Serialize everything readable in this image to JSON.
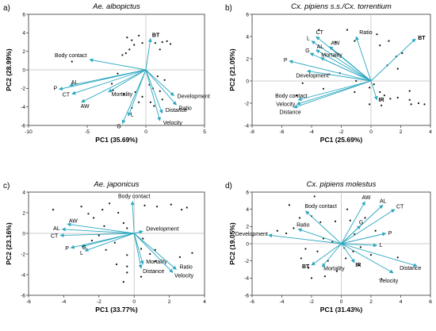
{
  "colors": {
    "arrow": "#2aa7c0",
    "point": "#111111",
    "frame": "#333333",
    "zero_line": "#bbbbbb"
  },
  "chart_data": [
    {
      "panel": "a)",
      "type": "scatter",
      "title": "Ae. albopictus",
      "xlabel": "PC1 (35.69%)",
      "ylabel": "PC2 (28.99%)",
      "xlim": [
        -10,
        5
      ],
      "ylim": [
        -6,
        6
      ],
      "xticks": [
        "-10",
        "-5",
        "0",
        "5"
      ],
      "yticks": [
        "-6",
        "-4",
        "-2",
        "0",
        "2",
        "4",
        "6"
      ],
      "xtick_values": [
        -10,
        -5,
        0,
        5
      ],
      "ytick_values": [
        -6,
        -4,
        -2,
        0,
        2,
        4,
        6
      ],
      "vectors": [
        {
          "label": "BT",
          "x": 0.4,
          "y": 3.4,
          "bold": true
        },
        {
          "label": "Body contact",
          "x": -4.8,
          "y": 1.1
        },
        {
          "label": "AL",
          "x": -6.5,
          "y": -1.7
        },
        {
          "label": "P",
          "x": -7.4,
          "y": -2.1
        },
        {
          "label": "CT",
          "x": -6.3,
          "y": -2.6
        },
        {
          "label": "AW",
          "x": -5.5,
          "y": -3.5
        },
        {
          "label": "Mortality",
          "x": -3.2,
          "y": -2.4
        },
        {
          "label": "L",
          "x": -1.5,
          "y": -5.0
        },
        {
          "label": "G",
          "x": -2.0,
          "y": -5.8
        },
        {
          "label": "Distance",
          "x": 1.4,
          "y": -4.7
        },
        {
          "label": "Velocity",
          "x": 1.2,
          "y": -5.5
        },
        {
          "label": "Ratio",
          "x": 2.6,
          "y": -3.8
        },
        {
          "label": "Development",
          "x": 2.4,
          "y": -2.8
        }
      ],
      "points": [
        [
          -1.6,
          3.5
        ],
        [
          -1.2,
          3.2
        ],
        [
          -1.0,
          2.7
        ],
        [
          -0.6,
          3.7
        ],
        [
          -1.4,
          2.2
        ],
        [
          -0.3,
          2.9
        ],
        [
          0.8,
          2.9
        ],
        [
          1.4,
          3.0
        ],
        [
          1.8,
          3.1
        ],
        [
          2.1,
          2.8
        ],
        [
          1.2,
          2.2
        ],
        [
          -2.0,
          1.6
        ],
        [
          -1.7,
          1.8
        ],
        [
          -6.3,
          0.9
        ],
        [
          -2.4,
          -0.4
        ],
        [
          -2.9,
          -1.5
        ],
        [
          -1.9,
          -2.6
        ],
        [
          -0.3,
          -2.9
        ],
        [
          0.3,
          -1.6
        ],
        [
          0.6,
          -2.0
        ],
        [
          1.0,
          -0.7
        ],
        [
          1.6,
          -1.1
        ],
        [
          1.2,
          -2.3
        ],
        [
          0.4,
          -3.5
        ],
        [
          -0.6,
          -3.5
        ],
        [
          -1.2,
          -4.1
        ],
        [
          -2.8,
          -2.2
        ],
        [
          0.7,
          -3.9
        ],
        [
          1.4,
          -3.2
        ],
        [
          -0.9,
          -2.4
        ]
      ]
    },
    {
      "panel": "b)",
      "type": "scatter",
      "title": "Cx. pipiens s.s./Cx. torrentium",
      "xlabel": "PC1 (25.69%)",
      "ylabel": "PC2 (21.05%)",
      "xlim": [
        -8,
        4
      ],
      "ylim": [
        -4,
        6
      ],
      "xticks": [
        "-8",
        "-6",
        "-4",
        "-2",
        "0",
        "2",
        "4"
      ],
      "yticks": [
        "-4",
        "-2",
        "0",
        "2",
        "4",
        "6"
      ],
      "xtick_values": [
        -8,
        -6,
        -4,
        -2,
        0,
        2,
        4
      ],
      "ytick_values": [
        -4,
        -2,
        0,
        2,
        4,
        6
      ],
      "vectors": [
        {
          "label": "CT",
          "x": -3.7,
          "y": 4.0
        },
        {
          "label": "Ratio",
          "x": -1.0,
          "y": 4.0
        },
        {
          "label": "L",
          "x": -4.0,
          "y": 3.6
        },
        {
          "label": "AW",
          "x": -2.8,
          "y": 3.1
        },
        {
          "label": "AL",
          "x": -3.7,
          "y": 2.8
        },
        {
          "label": "G",
          "x": -4.1,
          "y": 2.5
        },
        {
          "label": "Mortality",
          "x": -3.4,
          "y": 2.1
        },
        {
          "label": "P",
          "x": -5.5,
          "y": 1.8
        },
        {
          "label": "Development",
          "x": -4.3,
          "y": 0.9
        },
        {
          "label": "BT",
          "x": 3.0,
          "y": 3.8,
          "bold": true
        },
        {
          "label": "Body contact",
          "x": -4.9,
          "y": -1.7
        },
        {
          "label": "Velocity",
          "x": -5.0,
          "y": -2.1
        },
        {
          "label": "Distance",
          "x": -5.2,
          "y": -2.4
        },
        {
          "label": "IR",
          "x": 0.4,
          "y": -1.7,
          "bold": true
        }
      ],
      "points": [
        [
          -3.5,
          4.6
        ],
        [
          -1.6,
          4.6
        ],
        [
          0.4,
          4.2
        ],
        [
          -1.1,
          3.6
        ],
        [
          -2.4,
          3.5
        ],
        [
          0.6,
          3.2
        ],
        [
          1.2,
          3.6
        ],
        [
          2.1,
          2.5
        ],
        [
          1.7,
          2.2
        ],
        [
          1.1,
          1.4
        ],
        [
          1.8,
          1.1
        ],
        [
          -2.1,
          0.7
        ],
        [
          -2.8,
          0.6
        ],
        [
          -4.6,
          -0.2
        ],
        [
          -3.2,
          -0.7
        ],
        [
          -1.0,
          0.0
        ],
        [
          -1.1,
          -1.0
        ],
        [
          -0.1,
          -0.6
        ],
        [
          0.2,
          -0.3
        ],
        [
          0.6,
          -1.0
        ],
        [
          0.9,
          -1.3
        ],
        [
          1.3,
          -1.6
        ],
        [
          1.8,
          -1.5
        ],
        [
          2.6,
          -1.7
        ],
        [
          2.7,
          -2.1
        ],
        [
          3.2,
          -2.0
        ],
        [
          3.6,
          -2.1
        ],
        [
          -0.1,
          -2.1
        ],
        [
          0.7,
          -2.2
        ],
        [
          2.6,
          -0.9
        ],
        [
          -5.0,
          -1.3
        ]
      ]
    },
    {
      "panel": "c)",
      "type": "scatter",
      "title": "Ae. japonicus",
      "xlabel": "PC1 (33.77%)",
      "ylabel": "PC2 (23.16%)",
      "xlim": [
        -6,
        4
      ],
      "ylim": [
        -6,
        4
      ],
      "xticks": [
        "-6",
        "-4",
        "-2",
        "0",
        "2",
        "4"
      ],
      "yticks": [
        "-6",
        "-4",
        "-2",
        "0",
        "2",
        "4"
      ],
      "xtick_values": [
        -6,
        -4,
        -2,
        0,
        2,
        4
      ],
      "ytick_values": [
        -6,
        -4,
        -2,
        0,
        2,
        4
      ],
      "vectors": [
        {
          "label": "Body contact",
          "x": -0.1,
          "y": 3.1
        },
        {
          "label": "AW",
          "x": -3.8,
          "y": 0.9
        },
        {
          "label": "AL",
          "x": -4.1,
          "y": 0.4
        },
        {
          "label": "CT",
          "x": -4.2,
          "y": -0.2
        },
        {
          "label": "P",
          "x": -3.6,
          "y": -1.4
        },
        {
          "label": "G",
          "x": -3.0,
          "y": -1.3
        },
        {
          "label": "L",
          "x": -2.8,
          "y": -1.7
        },
        {
          "label": "Development",
          "x": 0.5,
          "y": 0.2
        },
        {
          "label": "Mortality",
          "x": 0.5,
          "y": -3.0
        },
        {
          "label": "Distance",
          "x": 0.4,
          "y": -3.4
        },
        {
          "label": "Ratio",
          "x": 2.4,
          "y": -3.5
        },
        {
          "label": "Velocity",
          "x": 2.2,
          "y": -3.8
        }
      ],
      "points": [
        [
          -4.6,
          2.3
        ],
        [
          -3.0,
          2.6
        ],
        [
          -2.6,
          1.9
        ],
        [
          -2.3,
          1.5
        ],
        [
          -1.8,
          2.3
        ],
        [
          -1.4,
          2.9
        ],
        [
          -0.9,
          2.0
        ],
        [
          -0.6,
          1.0
        ],
        [
          0.6,
          2.7
        ],
        [
          1.3,
          2.6
        ],
        [
          2.1,
          2.8
        ],
        [
          2.7,
          2.3
        ],
        [
          3.0,
          2.5
        ],
        [
          -1.7,
          0.7
        ],
        [
          -0.4,
          0.5
        ],
        [
          0.5,
          -0.5
        ],
        [
          -2.0,
          -0.2
        ],
        [
          -2.4,
          -0.7
        ],
        [
          -1.1,
          -0.9
        ],
        [
          -1.6,
          -1.6
        ],
        [
          -0.4,
          -2.1
        ],
        [
          0.9,
          -2.0
        ],
        [
          0.4,
          -1.5
        ],
        [
          1.2,
          -1.6
        ],
        [
          2.6,
          -2.3
        ],
        [
          -1.0,
          -3.0
        ],
        [
          -0.4,
          -3.2
        ],
        [
          0.4,
          -4.2
        ],
        [
          -0.6,
          -4.7
        ],
        [
          1.2,
          -2.7
        ],
        [
          3.3,
          -1.9
        ],
        [
          -0.4,
          -3.8
        ]
      ]
    },
    {
      "panel": "d)",
      "type": "scatter",
      "title": "Cx. pipiens molestus",
      "xlabel": "PC1 (31.43%)",
      "ylabel": "PC2 (19.05%)",
      "xlim": [
        -6,
        6
      ],
      "ylim": [
        -6,
        6
      ],
      "xticks": [
        "-6",
        "-4",
        "-2",
        "0",
        "2",
        "4",
        "6"
      ],
      "yticks": [
        "-6",
        "-4",
        "-2",
        "0",
        "2",
        "4",
        "6"
      ],
      "xtick_values": [
        -6,
        -4,
        -2,
        0,
        2,
        4,
        6
      ],
      "ytick_values": [
        -6,
        -4,
        -2,
        0,
        2,
        4,
        6
      ],
      "vectors": [
        {
          "label": "Body contact",
          "x": -2.4,
          "y": 3.8
        },
        {
          "label": "AW",
          "x": 1.6,
          "y": 4.9
        },
        {
          "label": "AL",
          "x": 2.8,
          "y": 4.5
        },
        {
          "label": "CT",
          "x": 3.6,
          "y": 4.0
        },
        {
          "label": "Ratio",
          "x": -2.9,
          "y": 1.7
        },
        {
          "label": "G",
          "x": 1.3,
          "y": 2.1
        },
        {
          "label": "Development",
          "x": -4.9,
          "y": 1.0
        },
        {
          "label": "P",
          "x": 3.0,
          "y": 1.2
        },
        {
          "label": "L",
          "x": 2.4,
          "y": -0.2
        },
        {
          "label": "BT",
          "x": -2.0,
          "y": -2.5,
          "bold": true
        },
        {
          "label": "Mortality",
          "x": -1.3,
          "y": -2.7
        },
        {
          "label": "IR",
          "x": 0.9,
          "y": -2.2,
          "bold": true
        },
        {
          "label": "Distance",
          "x": 5.1,
          "y": -2.6
        },
        {
          "label": "Velocity",
          "x": 3.5,
          "y": -3.4
        }
      ],
      "points": [
        [
          -3.5,
          4.5
        ],
        [
          -1.8,
          5.5
        ],
        [
          0.4,
          4.0
        ],
        [
          -2.8,
          3.0
        ],
        [
          -2.0,
          3.2
        ],
        [
          -1.4,
          2.5
        ],
        [
          -0.4,
          2.6
        ],
        [
          0.6,
          2.7
        ],
        [
          1.6,
          3.0
        ],
        [
          2.3,
          1.5
        ],
        [
          0.9,
          1.1
        ],
        [
          -3.2,
          1.8
        ],
        [
          -3.7,
          1.2
        ],
        [
          -4.3,
          1.5
        ],
        [
          -1.2,
          0.6
        ],
        [
          -0.6,
          0.2
        ],
        [
          0.2,
          -0.5
        ],
        [
          0.8,
          -0.9
        ],
        [
          1.3,
          -0.4
        ],
        [
          2.0,
          -1.3
        ],
        [
          -1.6,
          -0.9
        ],
        [
          -2.4,
          -0.6
        ],
        [
          -2.7,
          -1.7
        ],
        [
          -2.2,
          -2.8
        ],
        [
          -0.9,
          -2.0
        ],
        [
          0.3,
          -1.7
        ],
        [
          1.2,
          -2.5
        ],
        [
          -1.1,
          -3.8
        ],
        [
          -2.0,
          -4.0
        ],
        [
          2.7,
          -4.1
        ],
        [
          3.8,
          -1.6
        ],
        [
          -0.3,
          -3.2
        ]
      ]
    }
  ]
}
